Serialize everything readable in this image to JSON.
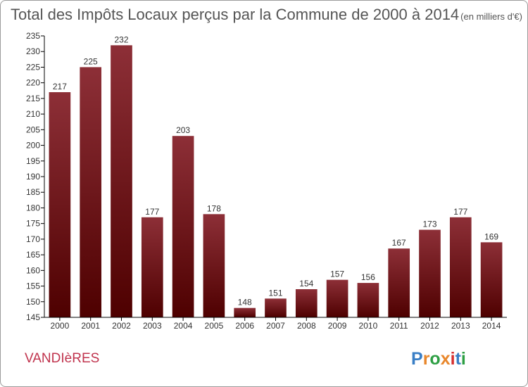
{
  "chart_data": {
    "type": "bar",
    "title": "Total des Impôts Locaux perçus par la Commune de 2000 à 2014",
    "subtitle": "(en milliers d'€)",
    "categories": [
      "2000",
      "2001",
      "2002",
      "2003",
      "2004",
      "2005",
      "2006",
      "2007",
      "2008",
      "2009",
      "2010",
      "2011",
      "2012",
      "2013",
      "2014"
    ],
    "values": [
      217,
      225,
      232,
      177,
      203,
      178,
      148,
      151,
      154,
      157,
      156,
      167,
      173,
      177,
      169
    ],
    "ylim": [
      145,
      235
    ],
    "yticks": [
      145,
      150,
      155,
      160,
      165,
      170,
      175,
      180,
      185,
      190,
      195,
      200,
      205,
      210,
      215,
      220,
      225,
      230,
      235
    ],
    "xlabel": "",
    "ylabel": "",
    "grid": false
  },
  "commune": "VANDIèRES",
  "logo": {
    "text": "Proxiti"
  },
  "colors": {
    "bar_top": "#8d2f37",
    "bar_bottom": "#4e0000",
    "commune": "#c0334d",
    "logo": [
      "#3a7fc6",
      "#e8872c",
      "#2e9f44",
      "#e8872c",
      "#d62f2f",
      "#3a7fc6",
      "#2e9f44"
    ]
  }
}
